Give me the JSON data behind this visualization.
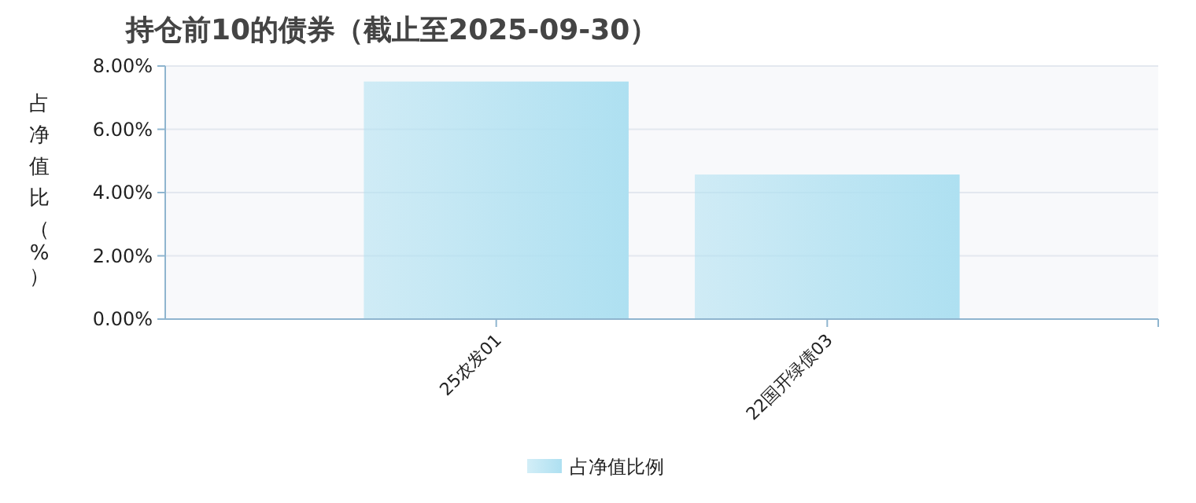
{
  "chart_data": {
    "type": "bar",
    "title": "持仓前10的债券（截止至2025-09-30）",
    "ylabel": "占净值比（%）",
    "categories": [
      "25农发01",
      "22国开绿债03"
    ],
    "series": [
      {
        "name": "占净值比例",
        "color": "#aee0f1",
        "values": [
          7.51,
          4.57
        ]
      }
    ],
    "ylim": [
      0,
      8
    ],
    "yticks": [
      {
        "value": 0,
        "label": "0.00%"
      },
      {
        "value": 2,
        "label": "2.00%"
      },
      {
        "value": 4,
        "label": "4.00%"
      },
      {
        "value": 6,
        "label": "6.00%"
      },
      {
        "value": 8,
        "label": "8.00%"
      }
    ],
    "grid": "y",
    "legend": "bottom"
  }
}
